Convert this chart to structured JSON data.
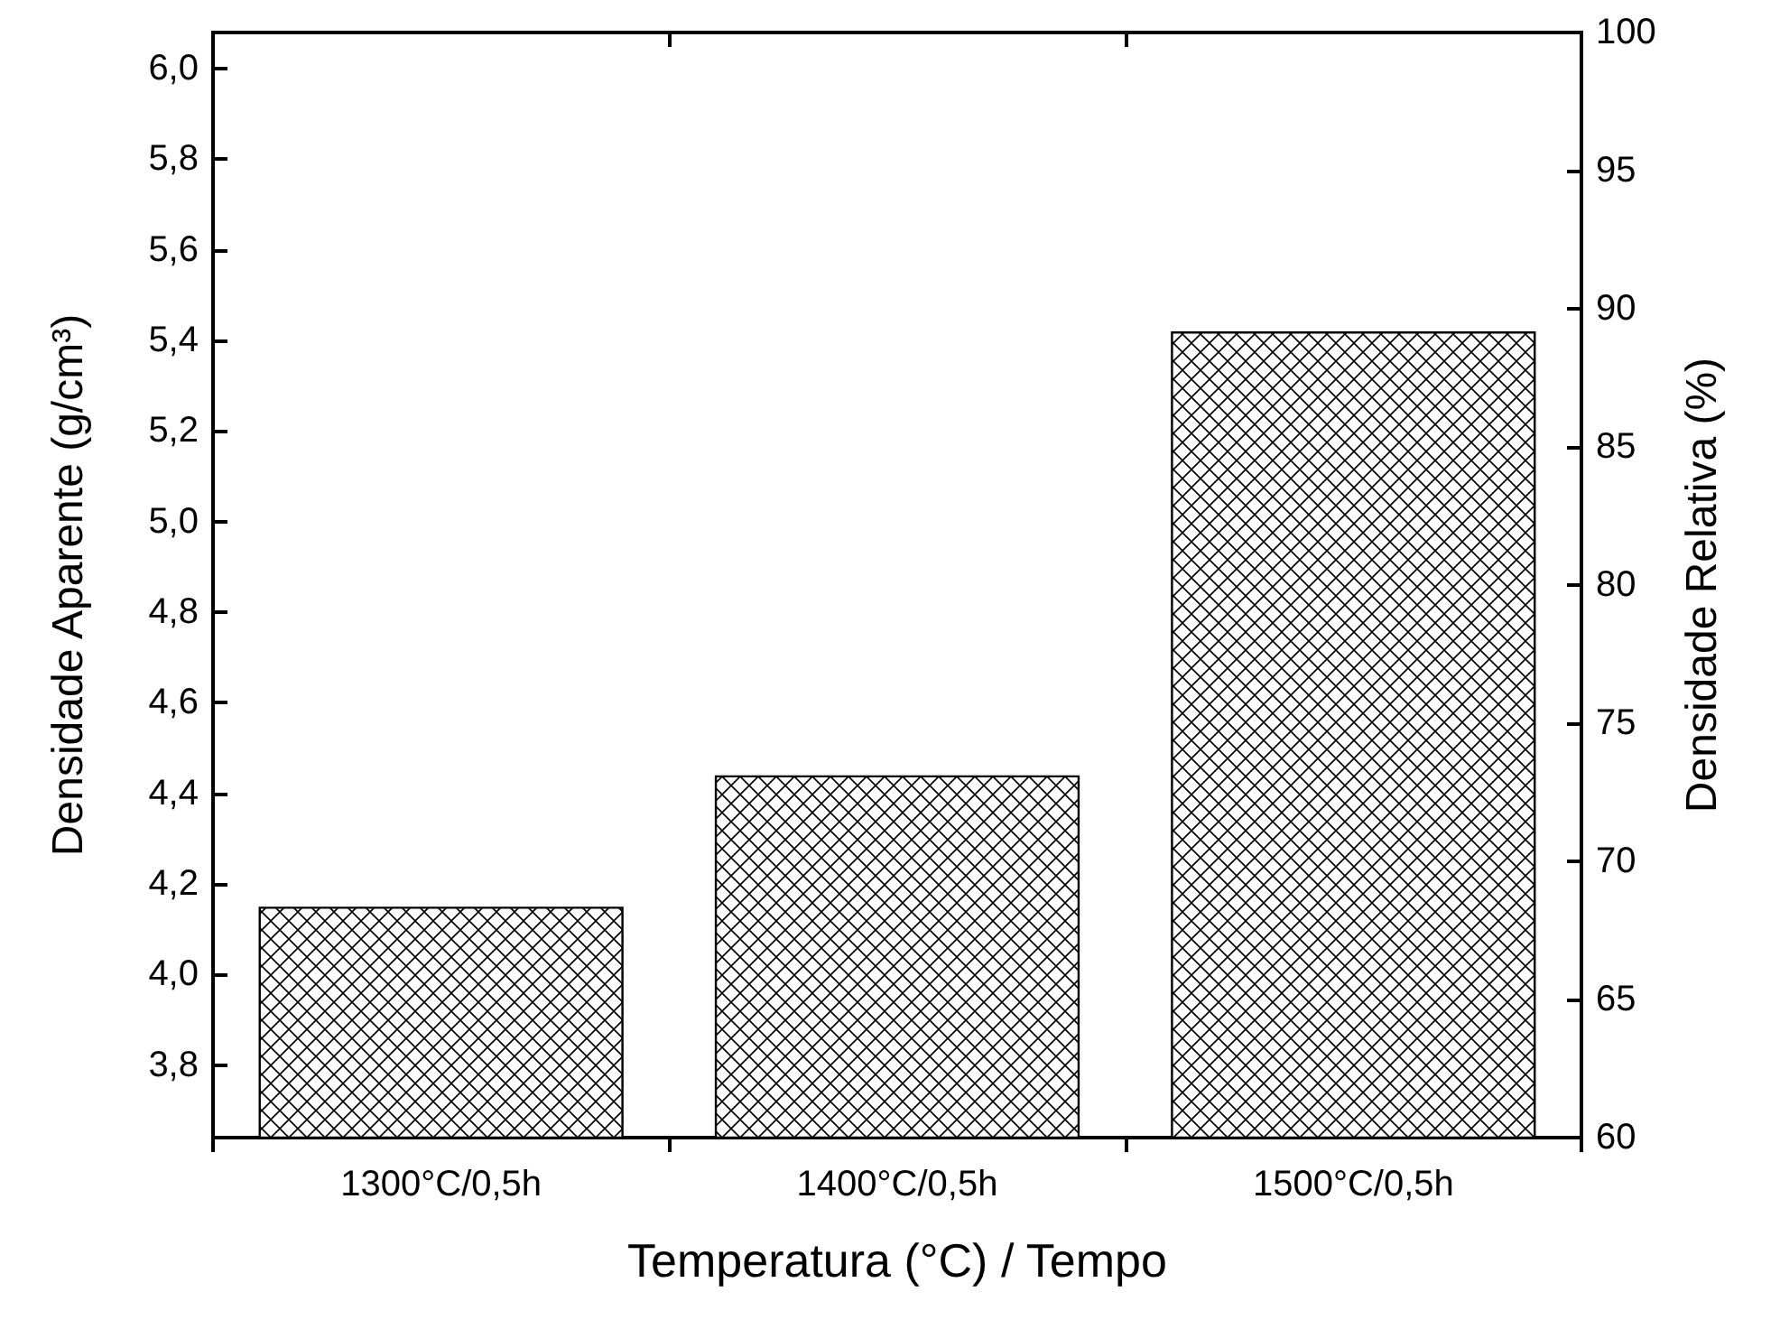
{
  "chart_data": {
    "type": "bar",
    "xlabel": "Temperatura (°C) / Tempo",
    "ylabel": "Densidade Aparente (g/cm³)",
    "y2label": "Densidade Relativa (%)",
    "categories": [
      "1300°C/0,5h",
      "1400°C/0,5h",
      "1500°C/0,5h"
    ],
    "series": [
      {
        "color": "#000000",
        "values": [
          4.15,
          4.44,
          5.42
        ]
      }
    ],
    "ylim": [
      3.64,
      6.08
    ],
    "yticks": [
      {
        "value": 3.8,
        "label": "3,8"
      },
      {
        "value": 4.0,
        "label": "4,0"
      },
      {
        "value": 4.2,
        "label": "4,2"
      },
      {
        "value": 4.4,
        "label": "4,4"
      },
      {
        "value": 4.6,
        "label": "4,6"
      },
      {
        "value": 4.8,
        "label": "4,8"
      },
      {
        "value": 5.0,
        "label": "5,0"
      },
      {
        "value": 5.2,
        "label": "5,2"
      },
      {
        "value": 5.4,
        "label": "5,4"
      },
      {
        "value": 5.6,
        "label": "5,6"
      },
      {
        "value": 5.8,
        "label": "5,8"
      },
      {
        "value": 6.0,
        "label": "6,0"
      }
    ],
    "y2lim": [
      60,
      100
    ],
    "y2ticks": [
      60,
      65,
      70,
      75,
      80,
      85,
      90,
      95,
      100
    ]
  }
}
